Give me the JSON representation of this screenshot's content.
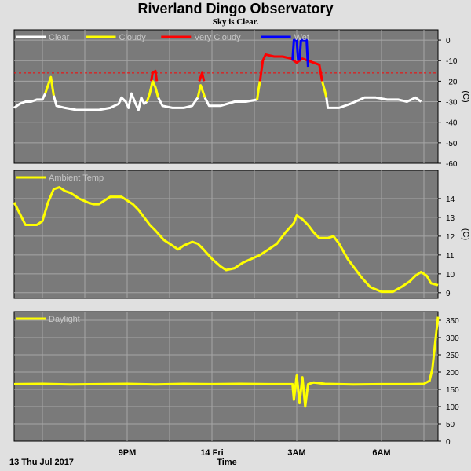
{
  "page": {
    "title": "Riverland Dingo Observatory",
    "subtitle": "Sky is Clear.",
    "date_label": "13 Thu Jul 2017",
    "x_axis_title": "Time",
    "x_ticks": [
      "9PM",
      "14 Fri",
      "3AM",
      "6AM"
    ]
  },
  "colors": {
    "plot_bg": "#7a7a7a",
    "grid": "#a6a6a6",
    "clear": "#ffffff",
    "cloudy": "#ffff00",
    "very_cloudy": "#ff0000",
    "wet": "#0000ff",
    "ambient": "#ffff00",
    "daylight": "#ffff00",
    "threshold": "#ff0000"
  },
  "chart_data": [
    {
      "type": "line",
      "title": "",
      "xlabel": "Time",
      "ylabel": "(C)",
      "x_range": [
        17.0,
        7.75
      ],
      "ylim": [
        -60,
        5
      ],
      "y_ticks": [
        0,
        -10,
        -20,
        -30,
        -40,
        -50,
        -60
      ],
      "threshold": -16,
      "legend": [
        "Clear",
        "Cloudy",
        "Very Cloudy",
        "Wet"
      ],
      "legend_placement": "top-left",
      "grid": true,
      "series": [
        {
          "name": "Clear",
          "segments": [
            [
              [
                17.0,
                -33
              ],
              [
                17.2,
                -31
              ],
              [
                17.4,
                -30
              ],
              [
                17.6,
                -30
              ],
              [
                17.8,
                -29
              ],
              [
                18.0,
                -29
              ],
              [
                18.1,
                -26
              ]
            ],
            [
              [
                18.4,
                -27
              ],
              [
                18.5,
                -32
              ],
              [
                18.8,
                -33
              ],
              [
                19.2,
                -34
              ],
              [
                19.6,
                -34
              ],
              [
                20.0,
                -34
              ],
              [
                20.4,
                -33
              ],
              [
                20.7,
                -31
              ],
              [
                20.8,
                -28
              ],
              [
                20.95,
                -30
              ],
              [
                21.05,
                -33
              ],
              [
                21.15,
                -26
              ],
              [
                21.3,
                -31
              ],
              [
                21.4,
                -34
              ],
              [
                21.5,
                -28
              ],
              [
                21.6,
                -31
              ],
              [
                21.7,
                -30
              ]
            ],
            [
              [
                22.1,
                -28
              ],
              [
                22.25,
                -32
              ],
              [
                22.6,
                -33
              ],
              [
                23.0,
                -33
              ],
              [
                23.3,
                -32
              ],
              [
                23.5,
                -28
              ]
            ],
            [
              [
                23.75,
                -28
              ],
              [
                23.9,
                -32
              ],
              [
                24.3,
                -32
              ],
              [
                24.8,
                -30
              ],
              [
                25.2,
                -30
              ],
              [
                25.6,
                -29
              ]
            ],
            [
              [
                28.05,
                -28
              ],
              [
                28.1,
                -33
              ],
              [
                28.5,
                -33
              ],
              [
                28.9,
                -31
              ],
              [
                29.4,
                -28
              ],
              [
                29.8,
                -28
              ],
              [
                30.2,
                -29
              ],
              [
                30.6,
                -29
              ],
              [
                30.9,
                -30
              ],
              [
                31.2,
                -28
              ],
              [
                31.4,
                -30
              ]
            ]
          ]
        },
        {
          "name": "Cloudy",
          "segments": [
            [
              [
                18.1,
                -26
              ],
              [
                18.2,
                -22
              ],
              [
                18.3,
                -18
              ],
              [
                18.4,
                -27
              ]
            ],
            [
              [
                21.7,
                -30
              ],
              [
                21.8,
                -26
              ],
              [
                21.9,
                -20
              ],
              [
                22.0,
                -23
              ],
              [
                22.1,
                -28
              ]
            ],
            [
              [
                23.5,
                -28
              ],
              [
                23.6,
                -22
              ],
              [
                23.75,
                -28
              ]
            ],
            [
              [
                25.6,
                -29
              ],
              [
                25.65,
                -24
              ],
              [
                25.7,
                -20
              ]
            ],
            [
              [
                27.9,
                -20
              ],
              [
                28.0,
                -25
              ],
              [
                28.05,
                -28
              ]
            ]
          ]
        },
        {
          "name": "Very Cloudy",
          "segments": [
            [
              [
                21.85,
                -20
              ],
              [
                21.9,
                -16
              ],
              [
                22.0,
                -15
              ],
              [
                22.05,
                -20
              ]
            ],
            [
              [
                23.55,
                -20
              ],
              [
                23.65,
                -16
              ],
              [
                23.72,
                -20
              ]
            ],
            [
              [
                25.7,
                -20
              ],
              [
                25.8,
                -10
              ],
              [
                25.9,
                -7
              ],
              [
                26.2,
                -8
              ],
              [
                26.5,
                -8
              ],
              [
                26.8,
                -9
              ],
              [
                27.0,
                -11
              ],
              [
                27.2,
                -9
              ],
              [
                27.4,
                -10
              ],
              [
                27.6,
                -11
              ],
              [
                27.8,
                -12
              ],
              [
                27.9,
                -20
              ]
            ]
          ]
        },
        {
          "name": "Wet",
          "segments": [
            [
              [
                26.85,
                -10
              ],
              [
                26.9,
                0
              ],
              [
                27.0,
                0
              ],
              [
                27.05,
                -10
              ]
            ],
            [
              [
                27.1,
                -10
              ],
              [
                27.15,
                0
              ],
              [
                27.35,
                0
              ],
              [
                27.4,
                -13
              ]
            ]
          ]
        }
      ]
    },
    {
      "type": "line",
      "title": "",
      "ylabel": "(C)",
      "x_range": [
        17.0,
        7.75
      ],
      "ylim": [
        8.7,
        15.5
      ],
      "y_ticks": [
        9,
        10,
        11,
        12,
        13,
        14
      ],
      "legend": [
        "Ambient Temp"
      ],
      "legend_placement": "top-left",
      "grid": true,
      "series": [
        {
          "name": "Ambient Temp",
          "points": [
            [
              17.0,
              13.8
            ],
            [
              17.2,
              13.2
            ],
            [
              17.4,
              12.6
            ],
            [
              17.6,
              12.6
            ],
            [
              17.8,
              12.6
            ],
            [
              18.0,
              12.8
            ],
            [
              18.2,
              13.8
            ],
            [
              18.4,
              14.5
            ],
            [
              18.6,
              14.6
            ],
            [
              18.8,
              14.4
            ],
            [
              19.0,
              14.3
            ],
            [
              19.3,
              14.0
            ],
            [
              19.6,
              13.8
            ],
            [
              19.8,
              13.7
            ],
            [
              20.0,
              13.7
            ],
            [
              20.2,
              13.9
            ],
            [
              20.4,
              14.1
            ],
            [
              20.6,
              14.1
            ],
            [
              20.8,
              14.1
            ],
            [
              21.0,
              13.9
            ],
            [
              21.2,
              13.7
            ],
            [
              21.4,
              13.4
            ],
            [
              21.6,
              13.0
            ],
            [
              21.8,
              12.6
            ],
            [
              22.0,
              12.3
            ],
            [
              22.3,
              11.8
            ],
            [
              22.6,
              11.5
            ],
            [
              22.8,
              11.3
            ],
            [
              23.0,
              11.5
            ],
            [
              23.3,
              11.7
            ],
            [
              23.5,
              11.6
            ],
            [
              23.7,
              11.3
            ],
            [
              24.0,
              10.8
            ],
            [
              24.3,
              10.4
            ],
            [
              24.5,
              10.2
            ],
            [
              24.8,
              10.3
            ],
            [
              25.1,
              10.6
            ],
            [
              25.4,
              10.8
            ],
            [
              25.7,
              11.0
            ],
            [
              26.0,
              11.3
            ],
            [
              26.3,
              11.6
            ],
            [
              26.6,
              12.2
            ],
            [
              26.9,
              12.7
            ],
            [
              27.0,
              13.1
            ],
            [
              27.2,
              12.9
            ],
            [
              27.4,
              12.6
            ],
            [
              27.6,
              12.2
            ],
            [
              27.8,
              11.9
            ],
            [
              28.1,
              11.9
            ],
            [
              28.3,
              12.0
            ],
            [
              28.5,
              11.6
            ],
            [
              28.8,
              10.8
            ],
            [
              29.0,
              10.4
            ],
            [
              29.3,
              9.8
            ],
            [
              29.6,
              9.3
            ],
            [
              30.0,
              9.05
            ],
            [
              30.4,
              9.05
            ],
            [
              30.7,
              9.3
            ],
            [
              31.0,
              9.6
            ],
            [
              31.2,
              9.9
            ],
            [
              31.4,
              10.1
            ],
            [
              31.6,
              9.9
            ],
            [
              31.75,
              9.5
            ],
            [
              32.0,
              9.4
            ]
          ]
        }
      ]
    },
    {
      "type": "line",
      "title": "",
      "ylabel": "",
      "x_range": [
        17.0,
        7.75
      ],
      "ylim": [
        0,
        375
      ],
      "y_ticks": [
        0,
        50,
        100,
        150,
        200,
        250,
        300,
        350
      ],
      "legend": [
        "Daylight"
      ],
      "legend_placement": "top-left",
      "grid": true,
      "series": [
        {
          "name": "Daylight",
          "points": [
            [
              17.0,
              165
            ],
            [
              18.0,
              166
            ],
            [
              19.0,
              164
            ],
            [
              20.0,
              165
            ],
            [
              21.0,
              166
            ],
            [
              22.0,
              164
            ],
            [
              23.0,
              166
            ],
            [
              24.0,
              165
            ],
            [
              25.0,
              166
            ],
            [
              26.0,
              165
            ],
            [
              26.85,
              165
            ],
            [
              26.9,
              120
            ],
            [
              27.0,
              190
            ],
            [
              27.1,
              110
            ],
            [
              27.2,
              185
            ],
            [
              27.3,
              100
            ],
            [
              27.4,
              165
            ],
            [
              27.6,
              170
            ],
            [
              28.0,
              166
            ],
            [
              29.0,
              164
            ],
            [
              30.0,
              165
            ],
            [
              31.0,
              165
            ],
            [
              31.5,
              166
            ],
            [
              31.7,
              175
            ],
            [
              31.8,
              210
            ],
            [
              31.9,
              285
            ],
            [
              32.0,
              360
            ]
          ]
        }
      ]
    }
  ]
}
